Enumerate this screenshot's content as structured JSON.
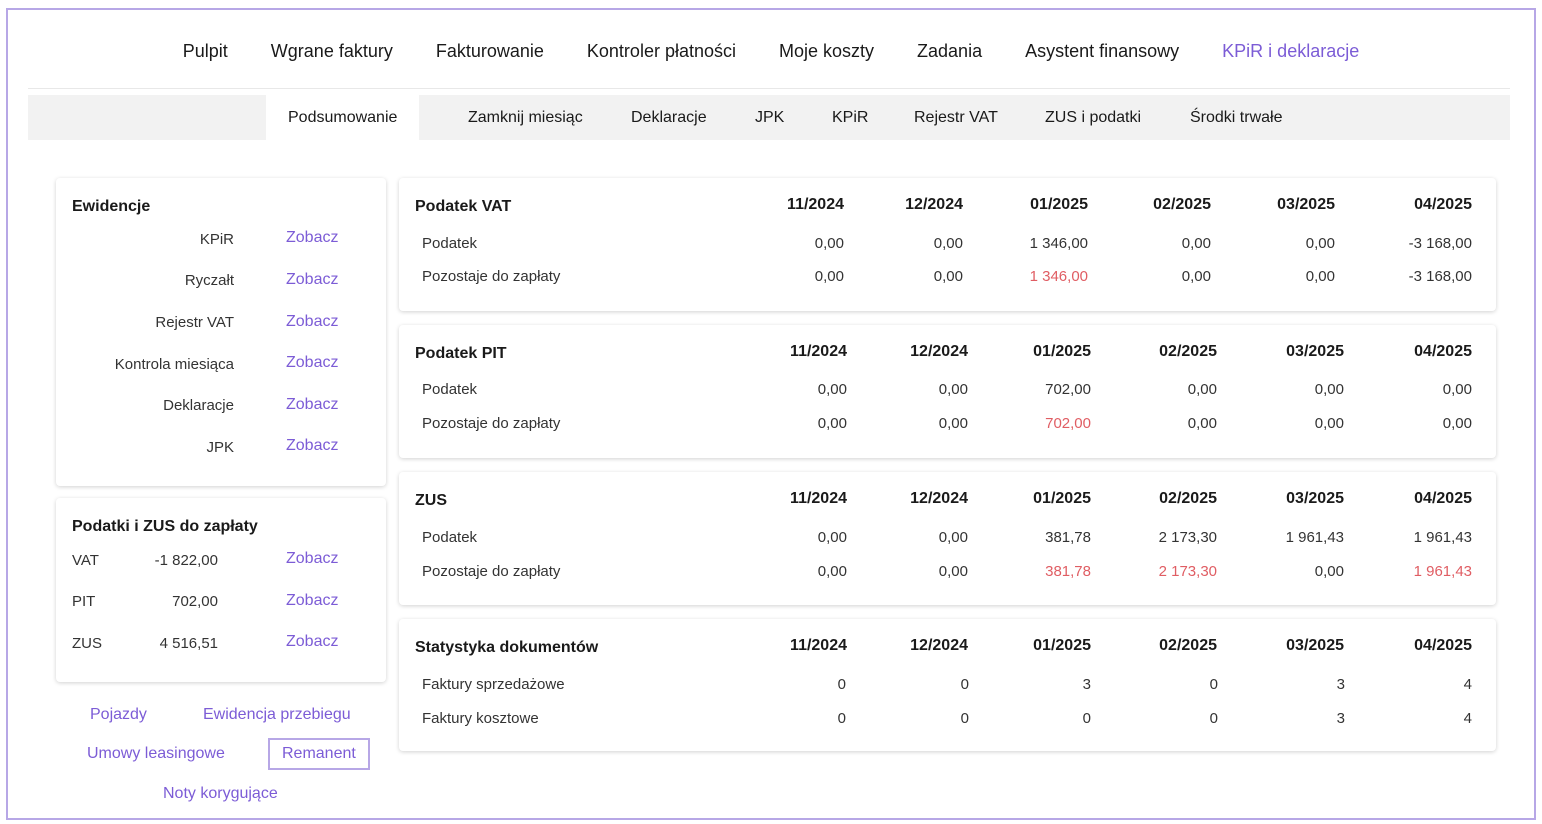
{
  "topnav": {
    "items": [
      "Pulpit",
      "Wgrane faktury",
      "Fakturowanie",
      "Kontroler płatności",
      "Moje koszty",
      "Zadania",
      "Asystent finansowy",
      "KPiR i deklaracje"
    ],
    "active": "KPiR i deklaracje"
  },
  "subnav": {
    "items": [
      "Podsumowanie",
      "Zamknij miesiąc",
      "Deklaracje",
      "JPK",
      "KPiR",
      "Rejestr VAT",
      "ZUS i podatki",
      "Środki trwałe"
    ],
    "active": "Podsumowanie"
  },
  "ewidencje": {
    "title": "Ewidencje",
    "link_label": "Zobacz",
    "items": [
      "KPiR",
      "Ryczałt",
      "Rejestr VAT",
      "Kontrola miesiąca",
      "Deklaracje",
      "JPK"
    ]
  },
  "payments": {
    "title": "Podatki i ZUS do zapłaty",
    "link_label": "Zobacz",
    "items": [
      {
        "name": "VAT",
        "amount": "-1 822,00"
      },
      {
        "name": "PIT",
        "amount": "702,00"
      },
      {
        "name": "ZUS",
        "amount": "4 516,51"
      }
    ]
  },
  "bottom_links": {
    "pojazdy": "Pojazdy",
    "ewidencja": "Ewidencja przebiegu",
    "umowy": "Umowy leasingowe",
    "remanent": "Remanent",
    "noty": "Noty korygujące"
  },
  "months": [
    "11/2024",
    "12/2024",
    "01/2025",
    "02/2025",
    "03/2025",
    "04/2025"
  ],
  "tables": {
    "vat": {
      "title": "Podatek VAT",
      "rows": [
        {
          "label": "Podatek",
          "values": [
            "0,00",
            "0,00",
            "1 346,00",
            "0,00",
            "0,00",
            "-3 168,00"
          ]
        },
        {
          "label": "Pozostaje do zapłaty",
          "values": [
            "0,00",
            "0,00",
            "1 346,00",
            "0,00",
            "0,00",
            "-3 168,00"
          ]
        }
      ]
    },
    "pit": {
      "title": "Podatek PIT",
      "rows": [
        {
          "label": "Podatek",
          "values": [
            "0,00",
            "0,00",
            "702,00",
            "0,00",
            "0,00",
            "0,00"
          ]
        },
        {
          "label": "Pozostaje do zapłaty",
          "values": [
            "0,00",
            "0,00",
            "702,00",
            "0,00",
            "0,00",
            "0,00"
          ]
        }
      ]
    },
    "zus": {
      "title": "ZUS",
      "rows": [
        {
          "label": "Podatek",
          "values": [
            "0,00",
            "0,00",
            "381,78",
            "2 173,30",
            "1 961,43",
            "1 961,43"
          ]
        },
        {
          "label": "Pozostaje do zapłaty",
          "values": [
            "0,00",
            "0,00",
            "381,78",
            "2 173,30",
            "0,00",
            "1 961,43"
          ]
        }
      ]
    },
    "stat": {
      "title": "Statystyka dokumentów",
      "rows": [
        {
          "label": "Faktury sprzedażowe",
          "values": [
            "0",
            "0",
            "3",
            "0",
            "3",
            "4"
          ]
        },
        {
          "label": "Faktury kosztowe",
          "values": [
            "0",
            "0",
            "0",
            "0",
            "3",
            "4"
          ]
        }
      ]
    }
  },
  "colors": {
    "accent": "#7c5cd6",
    "due": "#e05d63",
    "frame": "#b7a7e6"
  }
}
